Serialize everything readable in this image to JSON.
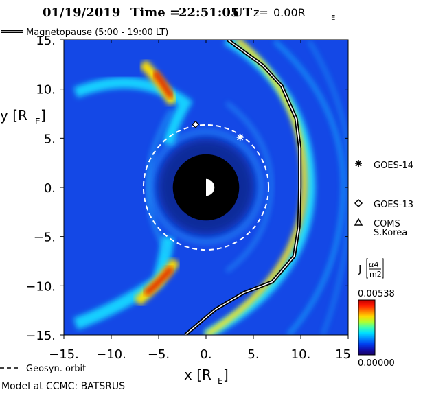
{
  "header": {
    "date": "01/19/2019",
    "time_label": "Time =",
    "time_value": "22:51:05",
    "time_unit": "UT",
    "z_label": "z=",
    "z_value": "0.00R",
    "z_sub": "E"
  },
  "magnetopause_legend": {
    "label": "Magnetopause (5:00 - 19:00 LT)"
  },
  "geosyn_legend": {
    "label": "Geosyn. orbit"
  },
  "footer": {
    "model": "Model at CCMC: BATSRUS"
  },
  "satellites": [
    {
      "name": "GOES-14",
      "symbol": "asterisk",
      "x": 3.6,
      "y": 5.1
    },
    {
      "name": "GOES-13",
      "symbol": "diamond",
      "x": -1.1,
      "y": 6.4
    },
    {
      "name": "COMS",
      "name2": "S.Korea",
      "symbol": "triangle"
    }
  ],
  "colorbar": {
    "label": "J",
    "unit_top": "μA",
    "unit_bottom": "m2",
    "max_label": "0.00538",
    "min_label": "0.00000",
    "colors": [
      "#c40000",
      "#ff1a00",
      "#ff7a00",
      "#ffd800",
      "#b0ff30",
      "#40ffb0",
      "#00e0ff",
      "#0090ff",
      "#0040f0",
      "#1010b0",
      "#1a0060"
    ]
  },
  "chart_data": {
    "type": "heatmap",
    "xlabel": "x [R",
    "xlabel_sub": "E",
    "ylabel": "y [R",
    "ylabel_sub": "E",
    "xlim": [
      -15,
      15
    ],
    "ylim": [
      -15,
      15
    ],
    "xticks": [
      "-15.",
      "-10.",
      "-5.",
      "0.",
      "5.",
      "10.",
      "15"
    ],
    "xtick_values": [
      -15,
      -10,
      -5,
      0,
      5,
      10,
      15
    ],
    "yticks": [
      "15.",
      "10.",
      "5.",
      "0.",
      "-5.",
      "-10.",
      "-15."
    ],
    "ytick_values": [
      15,
      10,
      5,
      0,
      -5,
      -10,
      -15
    ],
    "earth_radius": 3.5,
    "geosyn_radius": 6.6,
    "magnetopause": [
      [
        2.3,
        15.0
      ],
      [
        4.0,
        13.8
      ],
      [
        6.0,
        12.4
      ],
      [
        8.0,
        10.3
      ],
      [
        9.5,
        7.0
      ],
      [
        9.9,
        4.0
      ],
      [
        9.9,
        0.0
      ],
      [
        9.8,
        -4.0
      ],
      [
        9.3,
        -7.0
      ],
      [
        7.0,
        -9.6
      ],
      [
        4.0,
        -10.7
      ],
      [
        1.0,
        -12.4
      ],
      [
        -2.2,
        -15.0
      ]
    ],
    "colorbar_range": [
      0.0,
      0.00538
    ]
  }
}
